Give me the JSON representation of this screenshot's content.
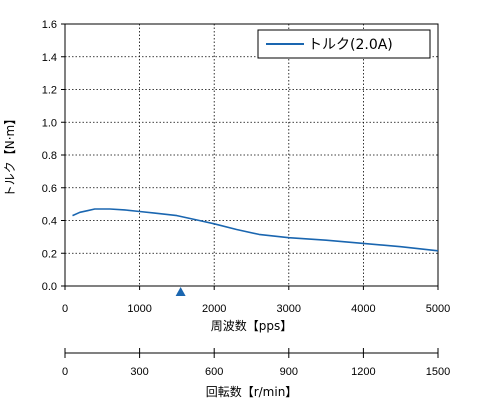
{
  "chart_data": {
    "type": "line",
    "xlabel": "周波数【pps】",
    "ylabel": "トルク【N·m】",
    "x2label": "回転数【r/min】",
    "xlim": [
      0,
      5000
    ],
    "ylim": [
      0,
      1.6
    ],
    "x2lim": [
      0,
      1500
    ],
    "xticks": [
      "0",
      "1000",
      "2000",
      "3000",
      "4000",
      "5000"
    ],
    "yticks": [
      "0.0",
      "0.2",
      "0.4",
      "0.6",
      "0.8",
      "1.0",
      "1.2",
      "1.4",
      "1.6"
    ],
    "x2ticks": [
      "0",
      "300",
      "600",
      "900",
      "1200",
      "1500"
    ],
    "grid": true,
    "legend_position": "top-right",
    "marker_x": 1550,
    "series": [
      {
        "name": "トルク(2.0A)",
        "color": "#1a66b0",
        "x": [
          100,
          200,
          300,
          400,
          500,
          600,
          800,
          1000,
          1200,
          1500,
          1800,
          2000,
          2300,
          2600,
          3000,
          3500,
          4000,
          4500,
          5000
        ],
        "y": [
          0.43,
          0.45,
          0.46,
          0.47,
          0.47,
          0.47,
          0.465,
          0.455,
          0.445,
          0.43,
          0.4,
          0.38,
          0.345,
          0.315,
          0.295,
          0.28,
          0.26,
          0.24,
          0.215
        ]
      }
    ],
    "marker_color": "#1a66b0"
  }
}
